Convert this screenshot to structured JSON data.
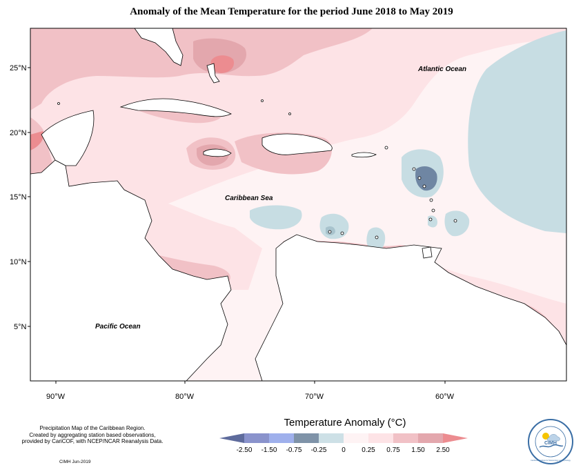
{
  "title": "Anomaly of the Mean Temperature for the period June 2018 to May 2019",
  "map": {
    "latitude_labels": [
      "25°N",
      "20°N",
      "15°N",
      "10°N",
      "5°N"
    ],
    "longitude_labels": [
      "90°W",
      "80°W",
      "70°W",
      "60°W"
    ],
    "region_labels": {
      "atlantic": "Atlantic Ocean",
      "caribbean": "Caribbean Sea",
      "pacific": "Pacific Ocean"
    },
    "colors": {
      "light_pink": "#fde3e6",
      "pink": "#f1c1c6",
      "dark_pink": "#e3a7ad",
      "red": "#ec8c90",
      "light_blue": "#c7dde3",
      "blue": "#a8c3cd",
      "dark_blue": "#6f86a3",
      "neutral": "#fef3f4"
    }
  },
  "legend": {
    "title": "Temperature Anomaly (°C)",
    "ticks": [
      "-2.50",
      "-1.50",
      "-0.75",
      "-0.25",
      "0",
      "0.25",
      "0.75",
      "1.50",
      "2.50"
    ],
    "colors": [
      "#5e6b9c",
      "#8a93cc",
      "#9fb0ec",
      "#7f93a8",
      "#cde0e6",
      "#fef3f4",
      "#fde3e6",
      "#f1c1c6",
      "#e3a7ad",
      "#ec8c90"
    ]
  },
  "credits": {
    "line1": "Precipitation Map of the Caribbean Region.",
    "line2": "Created by aggregating station based observations,",
    "line3": "provided by CariCOF, with NCEP/NCAR Reanalysis Data.",
    "date": "CIMH Jun-2019"
  },
  "logo": {
    "text": "CIMH",
    "ring_text": "Caribbean Institute for Meteorology and Hydrology"
  }
}
